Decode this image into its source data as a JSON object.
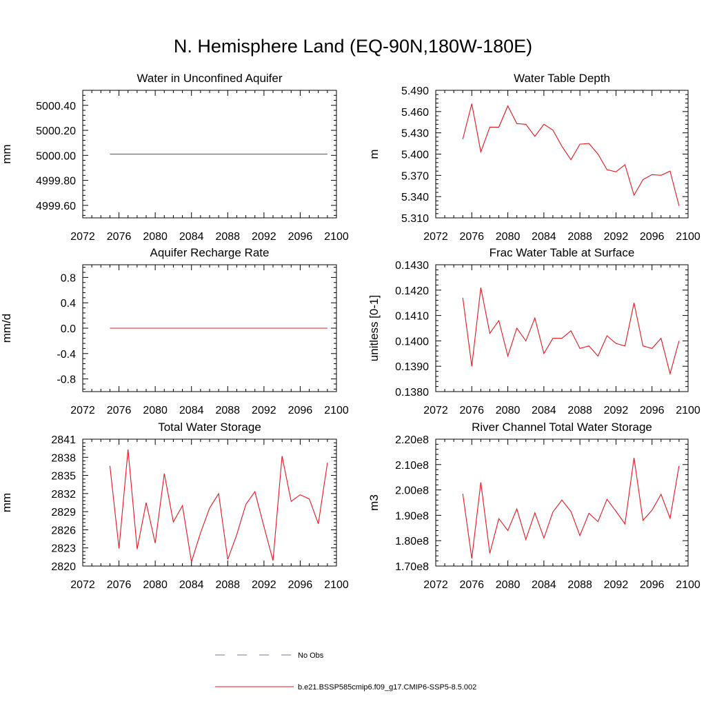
{
  "title": "N. Hemisphere Land (EQ-90N,180W-180E)",
  "colors": {
    "model": "#e8141c",
    "obs": "#6f70c0",
    "axis": "#000000"
  },
  "legend": [
    {
      "label": "No Obs",
      "style": "dashed",
      "color": "#6f70c0"
    },
    {
      "label": "b.e21.BSSP585cmip6.f09_g17.CMIP6-SSP5-8.5.002",
      "style": "solid",
      "color": "#e8141c"
    }
  ],
  "chart_data": [
    {
      "type": "line",
      "title": "Water in Unconfined Aquifer",
      "ylabel": "mm",
      "xlim": [
        2072,
        2100
      ],
      "ylim": [
        4999.5,
        5000.52
      ],
      "xticks": [
        2072,
        2076,
        2080,
        2084,
        2088,
        2092,
        2096,
        2100
      ],
      "xtick_labels": [
        "2072",
        "2076",
        "2080",
        "2084",
        "2088",
        "2092",
        "2096",
        "2100"
      ],
      "yticks": [
        4999.6,
        4999.8,
        5000.0,
        5000.2,
        5000.4
      ],
      "ytick_labels": [
        "4999.60",
        "4999.80",
        "5000.00",
        "5000.20",
        "5000.40"
      ],
      "series": [
        {
          "x": [
            2075,
            2099
          ],
          "y": [
            5000.01,
            5000.01
          ]
        }
      ]
    },
    {
      "type": "line",
      "title": "Water Table Depth",
      "ylabel": "m",
      "xlim": [
        2072,
        2100
      ],
      "ylim": [
        5.31,
        5.49
      ],
      "xticks": [
        2072,
        2076,
        2080,
        2084,
        2088,
        2092,
        2096,
        2100
      ],
      "xtick_labels": [
        "2072",
        "2076",
        "2080",
        "2084",
        "2088",
        "2092",
        "2096",
        "2100"
      ],
      "yticks": [
        5.31,
        5.34,
        5.37,
        5.4,
        5.43,
        5.46,
        5.49
      ],
      "ytick_labels": [
        "5.310",
        "5.340",
        "5.370",
        "5.400",
        "5.430",
        "5.460",
        "5.490"
      ],
      "series": [
        {
          "x": [
            2075,
            2076,
            2077,
            2078,
            2079,
            2080,
            2081,
            2082,
            2083,
            2084,
            2085,
            2086,
            2087,
            2088,
            2089,
            2090,
            2091,
            2092,
            2093,
            2094,
            2095,
            2096,
            2097,
            2098,
            2099
          ],
          "y": [
            5.421,
            5.471,
            5.403,
            5.438,
            5.438,
            5.468,
            5.443,
            5.442,
            5.425,
            5.442,
            5.434,
            5.411,
            5.392,
            5.414,
            5.415,
            5.4,
            5.378,
            5.375,
            5.385,
            5.342,
            5.364,
            5.371,
            5.37,
            5.376,
            5.327
          ]
        }
      ]
    },
    {
      "type": "line",
      "title": "Aquifer Recharge Rate",
      "ylabel": "mm/d",
      "xlim": [
        2072,
        2100
      ],
      "ylim": [
        -1.0,
        1.0
      ],
      "xticks": [
        2072,
        2076,
        2080,
        2084,
        2088,
        2092,
        2096,
        2100
      ],
      "xtick_labels": [
        "2072",
        "2076",
        "2080",
        "2084",
        "2088",
        "2092",
        "2096",
        "2100"
      ],
      "yticks": [
        -0.8,
        -0.4,
        0.0,
        0.4,
        0.8
      ],
      "ytick_labels": [
        "-0.8",
        "-0.4",
        "0.0",
        "0.4",
        "0.8"
      ],
      "series": [
        {
          "x": [
            2075,
            2099
          ],
          "y": [
            0.0,
            0.0
          ]
        }
      ]
    },
    {
      "type": "line",
      "title": "Frac Water Table at Surface",
      "ylabel": "unitless [0-1]",
      "xlim": [
        2072,
        2100
      ],
      "ylim": [
        0.138,
        0.143
      ],
      "xticks": [
        2072,
        2076,
        2080,
        2084,
        2088,
        2092,
        2096,
        2100
      ],
      "xtick_labels": [
        "2072",
        "2076",
        "2080",
        "2084",
        "2088",
        "2092",
        "2096",
        "2100"
      ],
      "yticks": [
        0.138,
        0.139,
        0.14,
        0.141,
        0.142,
        0.143
      ],
      "ytick_labels": [
        "0.1380",
        "0.1390",
        "0.1400",
        "0.1410",
        "0.1420",
        "0.1430"
      ],
      "series": [
        {
          "x": [
            2075,
            2076,
            2077,
            2078,
            2079,
            2080,
            2081,
            2082,
            2083,
            2084,
            2085,
            2086,
            2087,
            2088,
            2089,
            2090,
            2091,
            2092,
            2093,
            2094,
            2095,
            2096,
            2097,
            2098,
            2099
          ],
          "y": [
            0.1417,
            0.139,
            0.1421,
            0.1403,
            0.1408,
            0.1394,
            0.1405,
            0.14,
            0.1409,
            0.1395,
            0.1401,
            0.1401,
            0.1404,
            0.1397,
            0.1398,
            0.1394,
            0.1402,
            0.1399,
            0.1398,
            0.1415,
            0.1398,
            0.1397,
            0.1401,
            0.1387,
            0.14
          ]
        }
      ]
    },
    {
      "type": "line",
      "title": "Total Water Storage",
      "ylabel": "mm",
      "xlim": [
        2072,
        2100
      ],
      "ylim": [
        2820,
        2841
      ],
      "xticks": [
        2072,
        2076,
        2080,
        2084,
        2088,
        2092,
        2096,
        2100
      ],
      "xtick_labels": [
        "2072",
        "2076",
        "2080",
        "2084",
        "2088",
        "2092",
        "2096",
        "2100"
      ],
      "yticks": [
        2820,
        2823,
        2826,
        2829,
        2832,
        2835,
        2838,
        2841
      ],
      "ytick_labels": [
        "2820",
        "2823",
        "2826",
        "2829",
        "2832",
        "2835",
        "2838",
        "2841"
      ],
      "series": [
        {
          "x": [
            2075,
            2076,
            2077,
            2078,
            2079,
            2080,
            2081,
            2082,
            2083,
            2084,
            2085,
            2086,
            2087,
            2088,
            2089,
            2090,
            2091,
            2092,
            2093,
            2094,
            2095,
            2096,
            2097,
            2098,
            2099
          ],
          "y": [
            2836.6,
            2822.9,
            2839.3,
            2822.8,
            2830.5,
            2823.8,
            2835.3,
            2827.3,
            2830.0,
            2820.7,
            2825.5,
            2829.6,
            2832.0,
            2821.1,
            2825.2,
            2830.2,
            2832.3,
            2826.5,
            2820.9,
            2838.2,
            2830.7,
            2831.8,
            2831.1,
            2827.0,
            2837.1
          ]
        }
      ]
    },
    {
      "type": "line",
      "title": "River Channel Total Water Storage",
      "ylabel": "m3",
      "xlim": [
        2072,
        2100
      ],
      "ylim": [
        170000000,
        220000000
      ],
      "xticks": [
        2072,
        2076,
        2080,
        2084,
        2088,
        2092,
        2096,
        2100
      ],
      "xtick_labels": [
        "2072",
        "2076",
        "2080",
        "2084",
        "2088",
        "2092",
        "2096",
        "2100"
      ],
      "yticks": [
        170000000,
        180000000,
        190000000,
        200000000,
        210000000,
        220000000
      ],
      "ytick_labels": [
        "1.70e8",
        "1.80e8",
        "1.90e8",
        "2.00e8",
        "2.10e8",
        "2.20e8"
      ],
      "series": [
        {
          "x": [
            2075,
            2076,
            2077,
            2078,
            2079,
            2080,
            2081,
            2082,
            2083,
            2084,
            2085,
            2086,
            2087,
            2088,
            2089,
            2090,
            2091,
            2092,
            2093,
            2094,
            2095,
            2096,
            2097,
            2098,
            2099
          ],
          "y": [
            198500000,
            173000000,
            203000000,
            175000000,
            188700000,
            184000000,
            192500000,
            180500000,
            191000000,
            181000000,
            191300000,
            196000000,
            191500000,
            182000000,
            190800000,
            187500000,
            196300000,
            191600000,
            186600000,
            212700000,
            188000000,
            192000000,
            198300000,
            188800000,
            209500000
          ]
        }
      ]
    }
  ]
}
